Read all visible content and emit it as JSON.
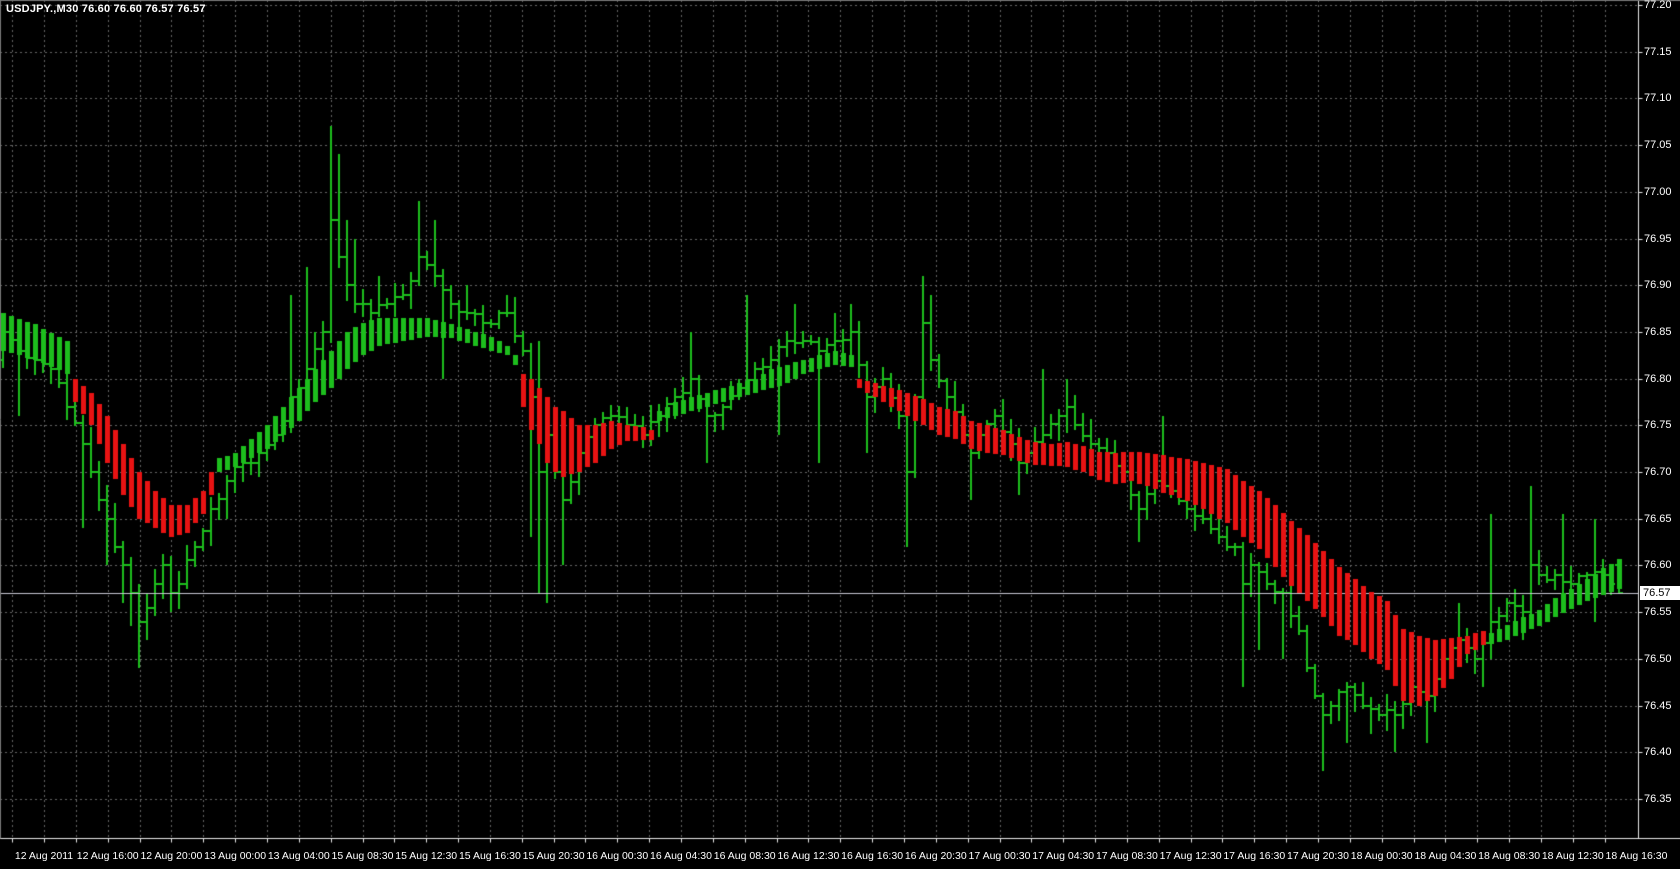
{
  "chart": {
    "title_full": "USDJPY.,M30  76.60 76.60 76.57 76.57",
    "symbol_title": "USDJPY.,M30",
    "ohlc_display": "76.60 76.60 76.57 76.57",
    "current_price": "76.57"
  },
  "y_axis": {
    "labels": [
      "77.20",
      "77.15",
      "77.10",
      "77.05",
      "77.00",
      "76.95",
      "76.90",
      "76.85",
      "76.80",
      "76.75",
      "76.70",
      "76.65",
      "76.60",
      "76.55",
      "76.50",
      "76.45",
      "76.40",
      "76.35"
    ]
  },
  "x_axis": {
    "labels": [
      "12 Aug 2011",
      "12 Aug 16:00",
      "12 Aug 20:00",
      "13 Aug 00:00",
      "13 Aug 04:00",
      "15 Aug 08:30",
      "15 Aug 12:30",
      "15 Aug 16:30",
      "15 Aug 20:30",
      "16 Aug 00:30",
      "16 Aug 04:30",
      "16 Aug 08:30",
      "16 Aug 12:30",
      "16 Aug 16:30",
      "16 Aug 20:30",
      "17 Aug 00:30",
      "17 Aug 04:30",
      "17 Aug 08:30",
      "17 Aug 12:30",
      "17 Aug 16:30",
      "17 Aug 20:30",
      "18 Aug 00:30",
      "18 Aug 04:30",
      "18 Aug 08:30",
      "18 Aug 12:30",
      "18 Aug 16:30"
    ]
  },
  "chart_data": {
    "type": "ohlc",
    "symbol": "USDJPY",
    "timeframe": "M30",
    "title": "USDJPY.,M30  76.60 76.60 76.57 76.57",
    "ylim": [
      76.35,
      77.2
    ],
    "grid": true,
    "legend_position": "none",
    "bar_count": 203,
    "last_bar": {
      "open": 76.6,
      "high": 76.6,
      "low": 76.57,
      "close": 76.57
    },
    "current_price": 76.57,
    "note": "close_anchors are [bar_index, close] points read off the chart; bars between anchors are linearly interpolated. ribbon_anchors are [bar_index, band_top, band_bottom] for the stepped trend ribbon, colored by trend_segments.",
    "close_anchors": [
      [
        0,
        76.85
      ],
      [
        2,
        76.83
      ],
      [
        4,
        76.82
      ],
      [
        6,
        76.81
      ],
      [
        8,
        76.77
      ],
      [
        10,
        76.73
      ],
      [
        12,
        76.67
      ],
      [
        14,
        76.62
      ],
      [
        16,
        76.57
      ],
      [
        17,
        76.54
      ],
      [
        19,
        76.58
      ],
      [
        20,
        76.6
      ],
      [
        21,
        76.57
      ],
      [
        22,
        76.58
      ],
      [
        24,
        76.62
      ],
      [
        26,
        76.66
      ],
      [
        28,
        76.69
      ],
      [
        30,
        76.71
      ],
      [
        32,
        76.72
      ],
      [
        34,
        76.74
      ],
      [
        36,
        76.78
      ],
      [
        38,
        76.81
      ],
      [
        40,
        76.85
      ],
      [
        41,
        76.97
      ],
      [
        42,
        76.93
      ],
      [
        43,
        76.9
      ],
      [
        44,
        76.88
      ],
      [
        46,
        76.87
      ],
      [
        48,
        76.88
      ],
      [
        50,
        76.89
      ],
      [
        52,
        76.93
      ],
      [
        54,
        76.91
      ],
      [
        56,
        76.88
      ],
      [
        58,
        76.87
      ],
      [
        60,
        76.86
      ],
      [
        63,
        76.87
      ],
      [
        65,
        76.83
      ],
      [
        66,
        76.78
      ],
      [
        67,
        76.7
      ],
      [
        68,
        76.74
      ],
      [
        69,
        76.7
      ],
      [
        70,
        76.67
      ],
      [
        72,
        76.72
      ],
      [
        74,
        76.75
      ],
      [
        76,
        76.76
      ],
      [
        78,
        76.75
      ],
      [
        80,
        76.74
      ],
      [
        82,
        76.76
      ],
      [
        84,
        76.78
      ],
      [
        86,
        76.8
      ],
      [
        88,
        76.76
      ],
      [
        90,
        76.77
      ],
      [
        92,
        76.79
      ],
      [
        94,
        76.81
      ],
      [
        96,
        76.82
      ],
      [
        98,
        76.84
      ],
      [
        100,
        76.84
      ],
      [
        102,
        76.83
      ],
      [
        104,
        76.84
      ],
      [
        106,
        76.85
      ],
      [
        108,
        76.78
      ],
      [
        110,
        76.8
      ],
      [
        112,
        76.76
      ],
      [
        113,
        76.7
      ],
      [
        114,
        76.78
      ],
      [
        115,
        76.86
      ],
      [
        116,
        76.82
      ],
      [
        118,
        76.78
      ],
      [
        120,
        76.74
      ],
      [
        121,
        76.72
      ],
      [
        122,
        76.74
      ],
      [
        124,
        76.76
      ],
      [
        126,
        76.73
      ],
      [
        127,
        76.71
      ],
      [
        128,
        76.72
      ],
      [
        130,
        76.74
      ],
      [
        132,
        76.76
      ],
      [
        133,
        76.77
      ],
      [
        134,
        76.75
      ],
      [
        136,
        76.73
      ],
      [
        138,
        76.72
      ],
      [
        140,
        76.7
      ],
      [
        142,
        76.66
      ],
      [
        144,
        76.69
      ],
      [
        146,
        76.68
      ],
      [
        148,
        76.66
      ],
      [
        150,
        76.65
      ],
      [
        152,
        76.63
      ],
      [
        154,
        76.62
      ],
      [
        155,
        76.58
      ],
      [
        156,
        76.6
      ],
      [
        158,
        76.58
      ],
      [
        160,
        76.57
      ],
      [
        162,
        76.53
      ],
      [
        163,
        76.49
      ],
      [
        164,
        76.46
      ],
      [
        165,
        76.44
      ],
      [
        166,
        76.45
      ],
      [
        168,
        76.47
      ],
      [
        170,
        76.45
      ],
      [
        172,
        76.44
      ],
      [
        174,
        76.44
      ],
      [
        176,
        76.47
      ],
      [
        178,
        76.46
      ],
      [
        180,
        76.5
      ],
      [
        182,
        76.52
      ],
      [
        184,
        76.5
      ],
      [
        186,
        76.54
      ],
      [
        188,
        76.56
      ],
      [
        190,
        76.55
      ],
      [
        191,
        76.6
      ],
      [
        192,
        76.59
      ],
      [
        194,
        76.59
      ],
      [
        196,
        76.58
      ],
      [
        198,
        76.59
      ],
      [
        200,
        76.59
      ],
      [
        201,
        76.58
      ],
      [
        202,
        76.57
      ]
    ],
    "extreme_highs": [
      [
        36,
        76.89
      ],
      [
        38,
        76.92
      ],
      [
        41,
        77.07
      ],
      [
        42,
        77.04
      ],
      [
        43,
        76.97
      ],
      [
        44,
        76.95
      ],
      [
        47,
        76.91
      ],
      [
        52,
        76.99
      ],
      [
        54,
        76.97
      ],
      [
        58,
        76.9
      ],
      [
        63,
        76.89
      ],
      [
        67,
        76.84
      ],
      [
        86,
        76.85
      ],
      [
        93,
        76.89
      ],
      [
        99,
        76.88
      ],
      [
        104,
        76.87
      ],
      [
        106,
        76.88
      ],
      [
        115,
        76.91
      ],
      [
        116,
        76.89
      ],
      [
        130,
        76.81
      ],
      [
        133,
        76.8
      ],
      [
        145,
        76.76
      ],
      [
        182,
        76.56
      ],
      [
        186,
        76.655
      ],
      [
        191,
        76.685
      ],
      [
        195,
        76.655
      ],
      [
        199,
        76.65
      ],
      [
        202,
        76.6
      ]
    ],
    "extreme_lows": [
      [
        2,
        76.76
      ],
      [
        10,
        76.64
      ],
      [
        13,
        76.6
      ],
      [
        15,
        76.56
      ],
      [
        16,
        76.535
      ],
      [
        17,
        76.49
      ],
      [
        18,
        76.52
      ],
      [
        21,
        76.55
      ],
      [
        28,
        76.65
      ],
      [
        55,
        76.8
      ],
      [
        66,
        76.63
      ],
      [
        67,
        76.57
      ],
      [
        68,
        76.56
      ],
      [
        70,
        76.6
      ],
      [
        88,
        76.71
      ],
      [
        97,
        76.74
      ],
      [
        102,
        76.71
      ],
      [
        108,
        76.72
      ],
      [
        113,
        76.62
      ],
      [
        121,
        76.67
      ],
      [
        127,
        76.675
      ],
      [
        142,
        76.625
      ],
      [
        155,
        76.47
      ],
      [
        157,
        76.51
      ],
      [
        160,
        76.5
      ],
      [
        165,
        76.38
      ],
      [
        168,
        76.41
      ],
      [
        171,
        76.42
      ],
      [
        174,
        76.4
      ],
      [
        178,
        76.41
      ],
      [
        185,
        76.47
      ],
      [
        190,
        76.52
      ],
      [
        199,
        76.54
      ],
      [
        202,
        76.57
      ]
    ],
    "trend_segments": [
      {
        "from": 0,
        "to": 8,
        "dir": "up"
      },
      {
        "from": 9,
        "to": 26,
        "dir": "down"
      },
      {
        "from": 27,
        "to": 64,
        "dir": "up"
      },
      {
        "from": 65,
        "to": 81,
        "dir": "down"
      },
      {
        "from": 82,
        "to": 106,
        "dir": "up"
      },
      {
        "from": 107,
        "to": 185,
        "dir": "down"
      },
      {
        "from": 186,
        "to": 202,
        "dir": "up"
      }
    ],
    "ribbon_anchors": [
      [
        0,
        76.87,
        76.83
      ],
      [
        4,
        76.858,
        76.82
      ],
      [
        8,
        76.84,
        76.805
      ],
      [
        9,
        76.8,
        76.775
      ],
      [
        11,
        76.785,
        76.75
      ],
      [
        13,
        76.76,
        76.71
      ],
      [
        15,
        76.73,
        76.675
      ],
      [
        17,
        76.7,
        76.65
      ],
      [
        19,
        76.68,
        76.64
      ],
      [
        21,
        76.665,
        76.63
      ],
      [
        23,
        76.665,
        76.635
      ],
      [
        25,
        76.68,
        76.655
      ],
      [
        26,
        76.7,
        76.675
      ],
      [
        27,
        76.715,
        76.7
      ],
      [
        29,
        76.72,
        76.705
      ],
      [
        31,
        76.735,
        76.715
      ],
      [
        33,
        76.75,
        76.725
      ],
      [
        35,
        76.77,
        76.74
      ],
      [
        37,
        76.79,
        76.755
      ],
      [
        39,
        76.81,
        76.775
      ],
      [
        41,
        76.83,
        76.79
      ],
      [
        43,
        76.85,
        76.81
      ],
      [
        45,
        76.86,
        76.825
      ],
      [
        47,
        76.865,
        76.835
      ],
      [
        50,
        76.865,
        76.84
      ],
      [
        53,
        76.865,
        76.845
      ],
      [
        56,
        76.858,
        76.843
      ],
      [
        59,
        76.85,
        76.835
      ],
      [
        61,
        76.845,
        76.83
      ],
      [
        63,
        76.835,
        76.825
      ],
      [
        64,
        76.825,
        76.815
      ],
      [
        65,
        76.805,
        76.77
      ],
      [
        66,
        76.8,
        76.745
      ],
      [
        67,
        76.79,
        76.73
      ],
      [
        68,
        76.78,
        76.71
      ],
      [
        69,
        76.77,
        76.7
      ],
      [
        70,
        76.765,
        76.695
      ],
      [
        72,
        76.75,
        76.7
      ],
      [
        74,
        76.75,
        76.71
      ],
      [
        76,
        76.755,
        76.725
      ],
      [
        78,
        76.75,
        76.733
      ],
      [
        80,
        76.748,
        76.734
      ],
      [
        81,
        76.745,
        76.734
      ],
      [
        82,
        76.765,
        76.755
      ],
      [
        84,
        76.775,
        76.76
      ],
      [
        86,
        76.78,
        76.765
      ],
      [
        88,
        76.785,
        76.77
      ],
      [
        90,
        76.79,
        76.775
      ],
      [
        92,
        76.795,
        76.78
      ],
      [
        94,
        76.8,
        76.785
      ],
      [
        96,
        76.81,
        76.79
      ],
      [
        98,
        76.815,
        76.795
      ],
      [
        100,
        76.82,
        76.805
      ],
      [
        102,
        76.825,
        76.81
      ],
      [
        104,
        76.83,
        76.815
      ],
      [
        106,
        76.825,
        76.813
      ],
      [
        107,
        76.8,
        76.79
      ],
      [
        109,
        76.795,
        76.78
      ],
      [
        111,
        76.79,
        76.77
      ],
      [
        113,
        76.785,
        76.76
      ],
      [
        115,
        76.778,
        76.75
      ],
      [
        117,
        76.77,
        76.74
      ],
      [
        119,
        76.765,
        76.735
      ],
      [
        121,
        76.755,
        76.725
      ],
      [
        123,
        76.75,
        76.72
      ],
      [
        125,
        76.745,
        76.718
      ],
      [
        127,
        76.737,
        76.712
      ],
      [
        129,
        76.732,
        76.708
      ],
      [
        131,
        76.73,
        76.707
      ],
      [
        133,
        76.732,
        76.705
      ],
      [
        135,
        76.728,
        76.7
      ],
      [
        137,
        76.722,
        76.692
      ],
      [
        139,
        76.72,
        76.687
      ],
      [
        141,
        76.722,
        76.69
      ],
      [
        143,
        76.72,
        76.685
      ],
      [
        145,
        76.718,
        76.678
      ],
      [
        147,
        76.715,
        76.672
      ],
      [
        149,
        76.712,
        76.665
      ],
      [
        151,
        76.708,
        76.655
      ],
      [
        153,
        76.703,
        76.645
      ],
      [
        155,
        76.69,
        76.63
      ],
      [
        157,
        76.68,
        76.618
      ],
      [
        159,
        76.665,
        76.598
      ],
      [
        161,
        76.648,
        76.578
      ],
      [
        163,
        76.633,
        76.562
      ],
      [
        165,
        76.615,
        76.545
      ],
      [
        167,
        76.598,
        76.525
      ],
      [
        169,
        76.585,
        76.515
      ],
      [
        171,
        76.572,
        76.5
      ],
      [
        173,
        76.562,
        76.488
      ],
      [
        175,
        76.532,
        76.455
      ],
      [
        177,
        76.525,
        76.45
      ],
      [
        179,
        76.52,
        76.46
      ],
      [
        181,
        76.522,
        76.478
      ],
      [
        183,
        76.525,
        76.505
      ],
      [
        185,
        76.53,
        76.515
      ],
      [
        186,
        76.528,
        76.516
      ],
      [
        188,
        76.536,
        76.52
      ],
      [
        190,
        76.545,
        76.528
      ],
      [
        192,
        76.552,
        76.535
      ],
      [
        194,
        76.565,
        76.545
      ],
      [
        196,
        76.575,
        76.553
      ],
      [
        198,
        76.585,
        76.562
      ],
      [
        200,
        76.597,
        76.568
      ],
      [
        202,
        76.607,
        76.575
      ]
    ],
    "colors": {
      "background": "#000000",
      "grid": "#666666",
      "bar_up": "#1DBE1D",
      "ribbon_up": "#1DBE1D",
      "ribbon_down": "#E81313",
      "axis_line": "#E8E8E8",
      "axis_text": "#FFFFFF",
      "price_line": "#C6C6D2",
      "price_tag_bg": "#FFFFFF",
      "price_tag_text": "#000000"
    }
  }
}
